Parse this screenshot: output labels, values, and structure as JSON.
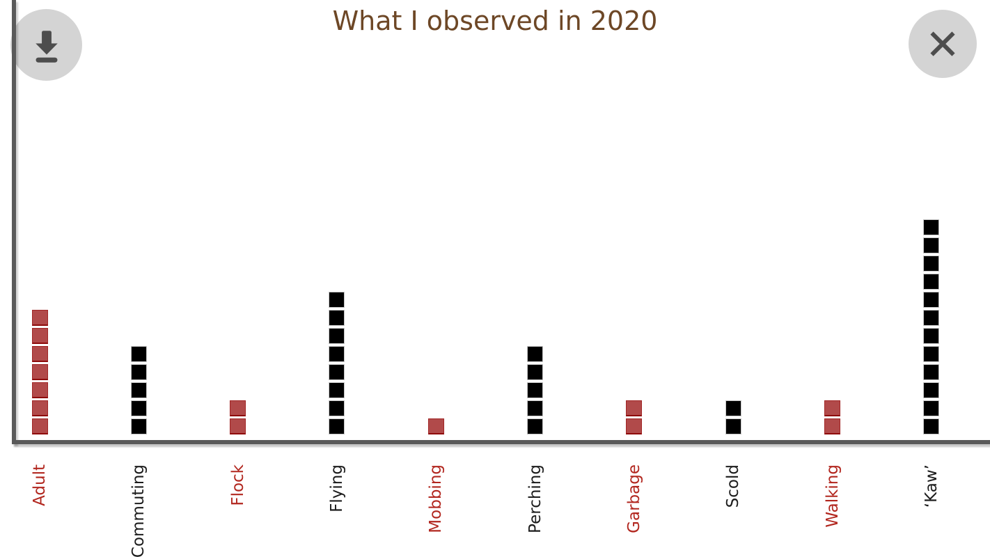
{
  "header": {
    "title": "What I observed in 2020"
  },
  "toolbar": {
    "download_button": {
      "icon": "download-icon"
    },
    "close_button": {
      "icon": "close-icon"
    }
  },
  "colors": {
    "title": "#6d4726",
    "axis": "#5a5a5a",
    "button_bg": "#d4d4d4",
    "button_icon": "#4d4d4d",
    "red_fill": "#b14a4a",
    "red_border": "#a12626",
    "red_border_bottom": "#8e0b0b",
    "red_label": "#b2271f",
    "black_fill": "#000000",
    "black_border": "#c6c6c6",
    "black_label": "#1c1c1c"
  },
  "chart_data": {
    "type": "bar",
    "variant": "unit-square-pictogram",
    "title": "What I observed in 2020",
    "categories": [
      "Adult",
      "Commuting",
      "Flock",
      "Flying",
      "Mobbing",
      "Perching",
      "Garbage",
      "Scold",
      "Walking",
      "‘Kaw’"
    ],
    "values": [
      7,
      5,
      2,
      8,
      1,
      5,
      2,
      2,
      2,
      12
    ],
    "bar_colors": [
      "red",
      "black",
      "red",
      "black",
      "red",
      "black",
      "red",
      "black",
      "red",
      "black"
    ],
    "unit_value": 1,
    "ylim": [
      0,
      12
    ],
    "xlabel": "",
    "ylabel": "",
    "legend": "none",
    "grid": false,
    "x_label_rotation": -90,
    "x_label_colors_match_bars": true
  }
}
